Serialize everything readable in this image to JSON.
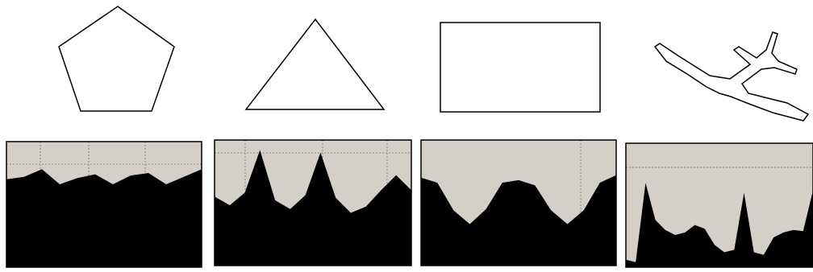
{
  "figure": {
    "shapes": [
      {
        "name": "pentagon",
        "signature": [
          0.7,
          0.72,
          0.78,
          0.66,
          0.71,
          0.74,
          0.66,
          0.73,
          0.75,
          0.66,
          0.72,
          0.78
        ]
      },
      {
        "name": "triangle",
        "signature": [
          0.55,
          0.48,
          0.58,
          0.92,
          0.52,
          0.45,
          0.56,
          0.9,
          0.54,
          0.42,
          0.47,
          0.6,
          0.72,
          0.6
        ]
      },
      {
        "name": "rectangle",
        "signature": [
          0.7,
          0.66,
          0.44,
          0.33,
          0.45,
          0.66,
          0.68,
          0.64,
          0.44,
          0.33,
          0.44,
          0.66,
          0.72
        ]
      },
      {
        "name": "airplane",
        "signature": [
          0.06,
          0.04,
          0.68,
          0.38,
          0.3,
          0.26,
          0.28,
          0.34,
          0.31,
          0.18,
          0.12,
          0.14,
          0.6,
          0.12,
          0.1,
          0.24,
          0.28,
          0.3,
          0.29,
          0.62
        ]
      }
    ],
    "colors": {
      "fill": "#000000",
      "background": "#d4d0c8",
      "line": "#000000",
      "guide": "#888888"
    }
  }
}
